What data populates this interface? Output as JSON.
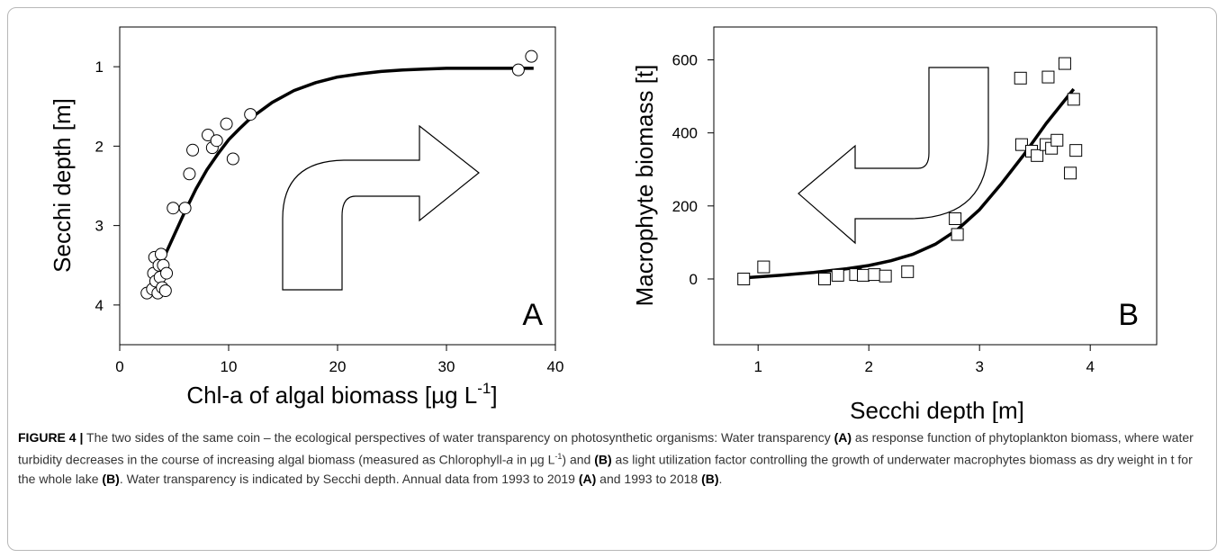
{
  "chart_data": [
    {
      "type": "scatter",
      "panel_label": "A",
      "xlabel": "Chl-a of algal biomass [µg L",
      "xlabel_superscript": "-1",
      "xlabel_end": "]",
      "ylabel": "Secchi depth [m]",
      "xlim": [
        0,
        40
      ],
      "ylim": [
        0.5,
        4.5
      ],
      "y_inverted": true,
      "xticks": [
        0,
        10,
        20,
        30,
        40
      ],
      "yticks": [
        1,
        2,
        3,
        4
      ],
      "grid": false,
      "points": [
        {
          "x": 2.5,
          "y": 3.85
        },
        {
          "x": 3.0,
          "y": 3.8
        },
        {
          "x": 3.1,
          "y": 3.6
        },
        {
          "x": 3.2,
          "y": 3.4
        },
        {
          "x": 3.3,
          "y": 3.7
        },
        {
          "x": 3.5,
          "y": 3.85
        },
        {
          "x": 3.6,
          "y": 3.5
        },
        {
          "x": 3.7,
          "y": 3.65
        },
        {
          "x": 3.8,
          "y": 3.36
        },
        {
          "x": 3.9,
          "y": 3.78
        },
        {
          "x": 4.0,
          "y": 3.5
        },
        {
          "x": 4.2,
          "y": 3.82
        },
        {
          "x": 4.3,
          "y": 3.6
        },
        {
          "x": 4.9,
          "y": 2.78
        },
        {
          "x": 6.0,
          "y": 2.78
        },
        {
          "x": 6.4,
          "y": 2.35
        },
        {
          "x": 6.7,
          "y": 2.05
        },
        {
          "x": 8.1,
          "y": 1.86
        },
        {
          "x": 8.5,
          "y": 2.02
        },
        {
          "x": 8.9,
          "y": 1.93
        },
        {
          "x": 9.8,
          "y": 1.72
        },
        {
          "x": 10.4,
          "y": 2.16
        },
        {
          "x": 12.0,
          "y": 1.6
        },
        {
          "x": 36.6,
          "y": 1.04
        },
        {
          "x": 37.8,
          "y": 0.87
        }
      ],
      "fit_curve": {
        "x": [
          2.5,
          3,
          4,
          5,
          6,
          7,
          8,
          9,
          10,
          11,
          12,
          14,
          16,
          18,
          20,
          22,
          24,
          26,
          28,
          30,
          32,
          34,
          36,
          38
        ],
        "y": [
          3.88,
          3.74,
          3.42,
          3.12,
          2.82,
          2.54,
          2.3,
          2.1,
          1.92,
          1.78,
          1.65,
          1.45,
          1.3,
          1.2,
          1.13,
          1.09,
          1.06,
          1.04,
          1.03,
          1.02,
          1.02,
          1.02,
          1.02,
          1.02
        ]
      }
    },
    {
      "type": "scatter",
      "panel_label": "B",
      "xlabel": "Secchi depth [m]",
      "ylabel": "Macrophyte biomass [t]",
      "xlim": [
        0.6,
        4.6
      ],
      "ylim": [
        -180,
        690
      ],
      "xticks": [
        1,
        2,
        3,
        4
      ],
      "yticks": [
        0,
        200,
        400,
        600
      ],
      "grid": false,
      "points": [
        {
          "x": 0.87,
          "y": 0
        },
        {
          "x": 1.05,
          "y": 33
        },
        {
          "x": 1.6,
          "y": 0
        },
        {
          "x": 1.72,
          "y": 10
        },
        {
          "x": 1.88,
          "y": 12
        },
        {
          "x": 1.95,
          "y": 10
        },
        {
          "x": 2.05,
          "y": 12
        },
        {
          "x": 2.15,
          "y": 8
        },
        {
          "x": 2.35,
          "y": 20
        },
        {
          "x": 2.78,
          "y": 165
        },
        {
          "x": 2.8,
          "y": 122
        },
        {
          "x": 3.37,
          "y": 550
        },
        {
          "x": 3.38,
          "y": 368
        },
        {
          "x": 3.47,
          "y": 350
        },
        {
          "x": 3.52,
          "y": 338
        },
        {
          "x": 3.6,
          "y": 368
        },
        {
          "x": 3.62,
          "y": 553
        },
        {
          "x": 3.65,
          "y": 358
        },
        {
          "x": 3.7,
          "y": 380
        },
        {
          "x": 3.77,
          "y": 590
        },
        {
          "x": 3.82,
          "y": 290
        },
        {
          "x": 3.85,
          "y": 492
        },
        {
          "x": 3.87,
          "y": 352
        }
      ],
      "fit_curve": {
        "x": [
          0.87,
          1.2,
          1.5,
          1.8,
          2.0,
          2.2,
          2.4,
          2.6,
          2.8,
          3.0,
          3.2,
          3.4,
          3.6,
          3.85
        ],
        "y": [
          3,
          10,
          18,
          28,
          37,
          50,
          68,
          95,
          135,
          190,
          262,
          340,
          425,
          520
        ]
      }
    }
  ],
  "caption": {
    "figure_label": "FIGURE 4 |",
    "text_1": " The two sides of the same coin – the ecological perspectives of water transparency on photosynthetic organisms: Water transparency ",
    "bold_a1": "(A)",
    "text_2": " as response function of phytoplankton biomass, where water turbidity decreases in the course of increasing algal biomass (measured as Chlorophyll-",
    "italic_a": "a",
    "text_3": " in µg L",
    "sup": "-1",
    "text_4": ") and ",
    "bold_b1": "(B)",
    "text_5": " as light utilization factor controlling the growth of underwater macrophytes biomass as dry weight in t for the whole lake ",
    "bold_b2": "(B)",
    "text_6": ". Water transparency is indicated by Secchi depth. Annual data from 1993 to 2019 ",
    "bold_a2": "(A)",
    "text_7": " and 1993 to 2018 ",
    "bold_b3": "(B)",
    "text_8": "."
  }
}
